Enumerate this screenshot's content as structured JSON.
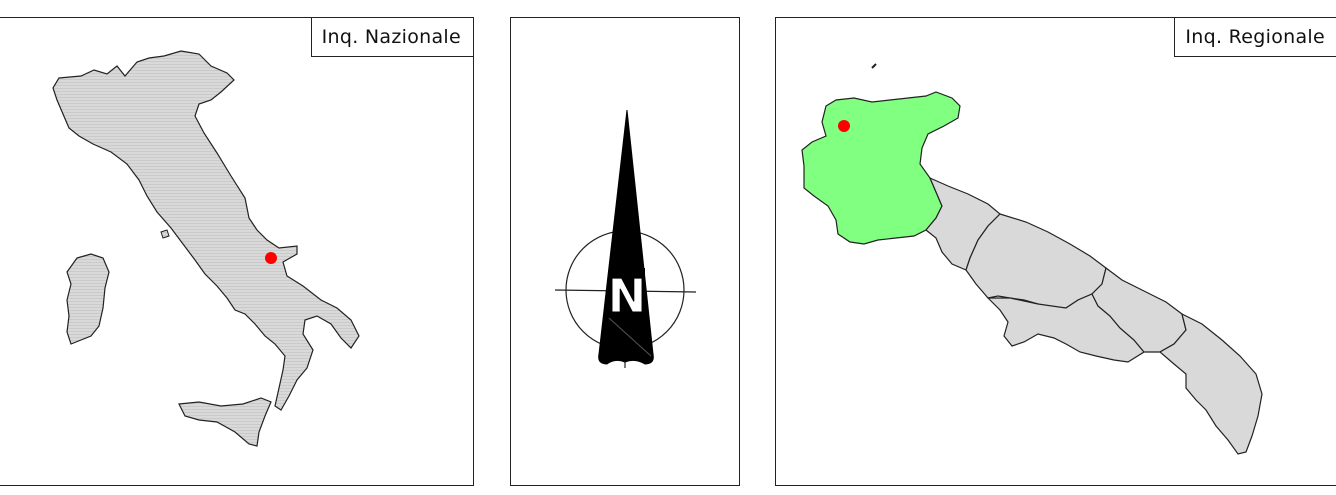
{
  "national_panel": {
    "label": "Inq. Nazionale",
    "fill": "#d9d9d9",
    "marker_color": "#ff0000"
  },
  "north_arrow": {
    "letter": "N"
  },
  "regional_panel": {
    "label": "Inq. Regionale",
    "highlight_fill": "#80ff80",
    "fill": "#d9d9d9",
    "marker_color": "#ff0000"
  }
}
